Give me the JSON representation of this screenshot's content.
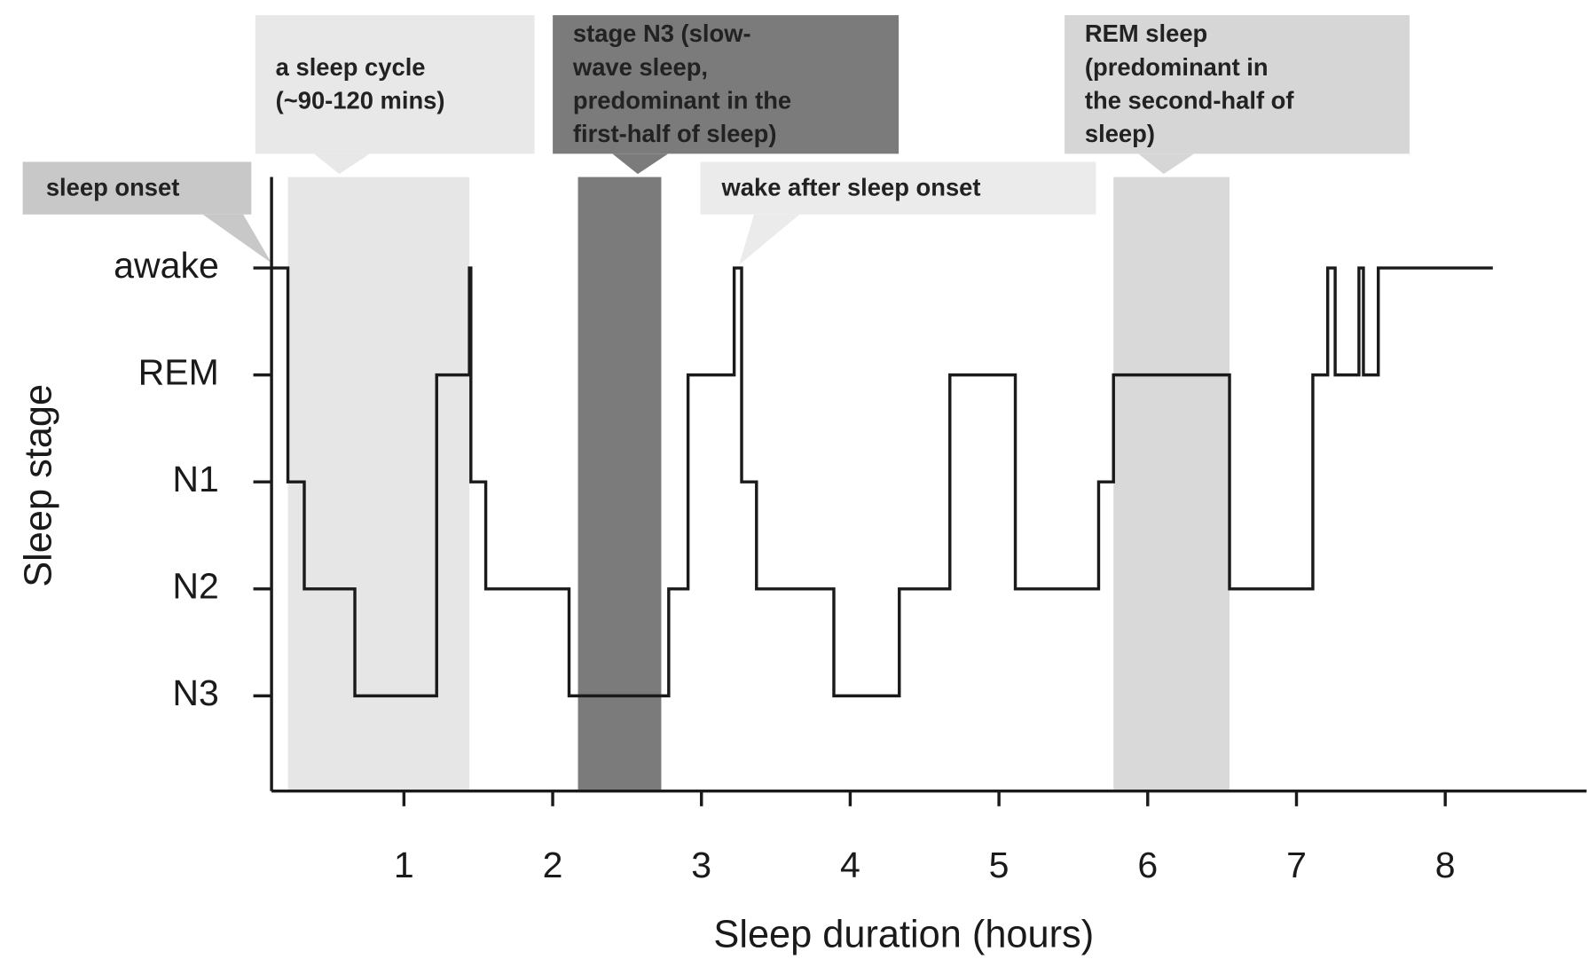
{
  "chart_data": {
    "type": "step",
    "x_label": "Sleep duration (hours)",
    "y_label": "Sleep stage",
    "xlim": [
      0.11,
      8.95
    ],
    "xticks": [
      1,
      2,
      3,
      4,
      5,
      6,
      7,
      8
    ],
    "ylim": [
      -0.89,
      4.85
    ],
    "yticks": [
      {
        "value": 4,
        "label": "awake"
      },
      {
        "value": 3,
        "label": "REM"
      },
      {
        "value": 2,
        "label": "N1"
      },
      {
        "value": 1,
        "label": "N2"
      },
      {
        "value": 0,
        "label": "N3"
      }
    ],
    "color": "#1a1a1a",
    "x": [
      0.11,
      0.22,
      0.33,
      0.67,
      1.22,
      1.44,
      1.45,
      1.55,
      2.11,
      2.78,
      2.91,
      3.22,
      3.27,
      3.37,
      3.89,
      4.33,
      4.67,
      5.11,
      5.67,
      5.77,
      6.55,
      7.11,
      7.21,
      7.26,
      7.42,
      7.45,
      7.55,
      8.32
    ],
    "values": [
      4,
      2,
      1,
      0,
      3,
      4,
      2,
      1,
      0,
      1,
      3,
      4,
      2,
      1,
      0,
      1,
      3,
      1,
      2,
      3,
      1,
      3,
      4,
      3,
      4,
      3,
      4,
      4
    ],
    "bands": [
      {
        "x": [
          0.22,
          1.44
        ],
        "color": "#e6e6e6"
      },
      {
        "x": [
          2.17,
          2.73
        ],
        "color": "#7b7b7b"
      },
      {
        "x": [
          5.77,
          6.55
        ],
        "color": "#d9d9d9"
      }
    ],
    "annotations": [
      {
        "lines": [
          "a sleep cycle",
          "(~90-120 mins)"
        ]
      },
      {
        "lines": [
          "stage N3 (slow-",
          "wave sleep,",
          "predominant in the",
          "first-half of sleep)"
        ]
      },
      {
        "lines": [
          "REM sleep",
          "(predominant in",
          "the second-half of",
          "sleep)"
        ]
      },
      {
        "lines": [
          "sleep onset"
        ]
      },
      {
        "lines": [
          "wake after sleep onset"
        ]
      }
    ]
  }
}
